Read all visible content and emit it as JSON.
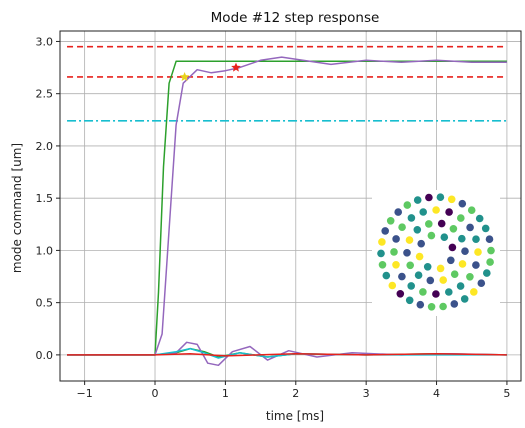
{
  "chart_data": {
    "type": "line",
    "title": "Mode #12 step response",
    "xlabel": "time [ms]",
    "ylabel": "mode command [um]",
    "xlim": [
      -1.35,
      5.2
    ],
    "ylim": [
      -0.25,
      3.1
    ],
    "xticks": [
      -1,
      0,
      1,
      2,
      3,
      4,
      5
    ],
    "yticks": [
      0.0,
      0.5,
      1.0,
      1.5,
      2.0,
      2.5,
      3.0
    ],
    "xtick_labels": [
      "−1",
      "0",
      "1",
      "2",
      "3",
      "4",
      "5"
    ],
    "ytick_labels": [
      "0.0",
      "0.5",
      "1.0",
      "1.5",
      "2.0",
      "2.5",
      "3.0"
    ],
    "grid": true,
    "legend": "none",
    "reference_lines": [
      {
        "y": 2.95,
        "style": "dashed",
        "color": "#e8211c"
      },
      {
        "y": 2.66,
        "style": "dashed",
        "color": "#e8211c"
      },
      {
        "y": 2.24,
        "style": "dashdot",
        "color": "#17becf"
      }
    ],
    "series": [
      {
        "color": "#2ca02c",
        "x": [
          -1.25,
          0.0,
          0.05,
          0.12,
          0.2,
          0.3,
          0.4,
          5.0
        ],
        "y": [
          0.0,
          0.0,
          0.6,
          1.8,
          2.6,
          2.81,
          2.81,
          2.81
        ]
      },
      {
        "color": "#9467bd",
        "x": [
          -1.25,
          0.0,
          0.1,
          0.2,
          0.3,
          0.4,
          0.6,
          0.8,
          1.0,
          1.2,
          1.5,
          1.8,
          2.1,
          2.5,
          3.0,
          3.5,
          4.0,
          4.5,
          5.0
        ],
        "y": [
          0.0,
          0.0,
          0.2,
          1.2,
          2.2,
          2.6,
          2.73,
          2.7,
          2.72,
          2.75,
          2.82,
          2.85,
          2.82,
          2.78,
          2.82,
          2.8,
          2.82,
          2.8,
          2.8
        ]
      },
      {
        "color": "#2ca02c",
        "x": [
          -1.25,
          0.0,
          0.3,
          0.5,
          0.7,
          0.9,
          1.2,
          1.6,
          2.0,
          3.0,
          4.0,
          5.0
        ],
        "y": [
          0.0,
          0.0,
          0.02,
          0.06,
          0.03,
          -0.02,
          0.02,
          -0.02,
          0.01,
          0.0,
          0.01,
          0.0
        ]
      },
      {
        "color": "#9467bd",
        "x": [
          -1.25,
          0.0,
          0.3,
          0.45,
          0.6,
          0.75,
          0.9,
          1.1,
          1.35,
          1.6,
          1.9,
          2.3,
          2.8,
          3.5,
          4.2,
          5.0
        ],
        "y": [
          0.0,
          0.0,
          0.02,
          0.12,
          0.1,
          -0.08,
          -0.1,
          0.03,
          0.08,
          -0.05,
          0.04,
          -0.02,
          0.02,
          0.0,
          0.01,
          0.0
        ]
      },
      {
        "color": "#17becf",
        "x": [
          -1.25,
          0.0,
          0.3,
          0.5,
          0.7,
          0.9,
          1.2,
          1.6,
          2.0,
          3.0,
          4.0,
          5.0
        ],
        "y": [
          0.0,
          0.0,
          0.03,
          0.06,
          0.02,
          -0.03,
          0.02,
          -0.02,
          0.01,
          0.0,
          0.0,
          0.0
        ]
      },
      {
        "color": "#e8211c",
        "x": [
          -1.25,
          0.0,
          0.5,
          1.0,
          2.0,
          3.0,
          4.0,
          5.0
        ],
        "y": [
          0.0,
          0.0,
          0.01,
          -0.01,
          0.01,
          0.0,
          0.01,
          0.0
        ]
      }
    ],
    "markers": [
      {
        "x": 0.42,
        "y": 2.66,
        "color": "#e8d21c",
        "shape": "star"
      },
      {
        "x": 1.15,
        "y": 2.75,
        "color": "#e8211c",
        "shape": "star"
      }
    ],
    "inset": {
      "type": "scatter",
      "description_colors": [
        "#440154",
        "#3b528b",
        "#21918c",
        "#5ec962",
        "#fde725"
      ],
      "values": [
        0.35,
        0.8,
        0.55,
        0.9,
        0.2,
        0.6,
        0.45,
        0.1,
        0.7,
        0.95,
        0.3,
        0.5,
        0.65,
        0.25,
        0.85,
        0.4,
        0.6,
        0.15,
        0.75,
        0.55,
        0.35,
        0.9,
        0.45,
        0.05,
        0.7,
        0.5,
        0.3,
        0.8,
        0.6,
        0.2,
        0.65,
        0.4,
        0.55,
        0.95,
        0.1,
        0.7,
        0.35,
        0.5,
        0.85,
        0.25,
        0.6,
        0.45,
        0.75,
        0.3,
        0.55,
        0.15,
        0.8,
        0.4,
        0.65,
        0.5,
        0.9,
        0.2,
        0.6,
        0.35,
        0.7,
        0.45,
        0.05,
        0.55,
        0.8,
        0.3,
        0.65,
        0.4,
        0.5,
        0.25,
        0.75,
        0.6,
        0.45,
        0.35,
        0.85,
        0.55,
        0.2,
        0.7
      ]
    }
  }
}
